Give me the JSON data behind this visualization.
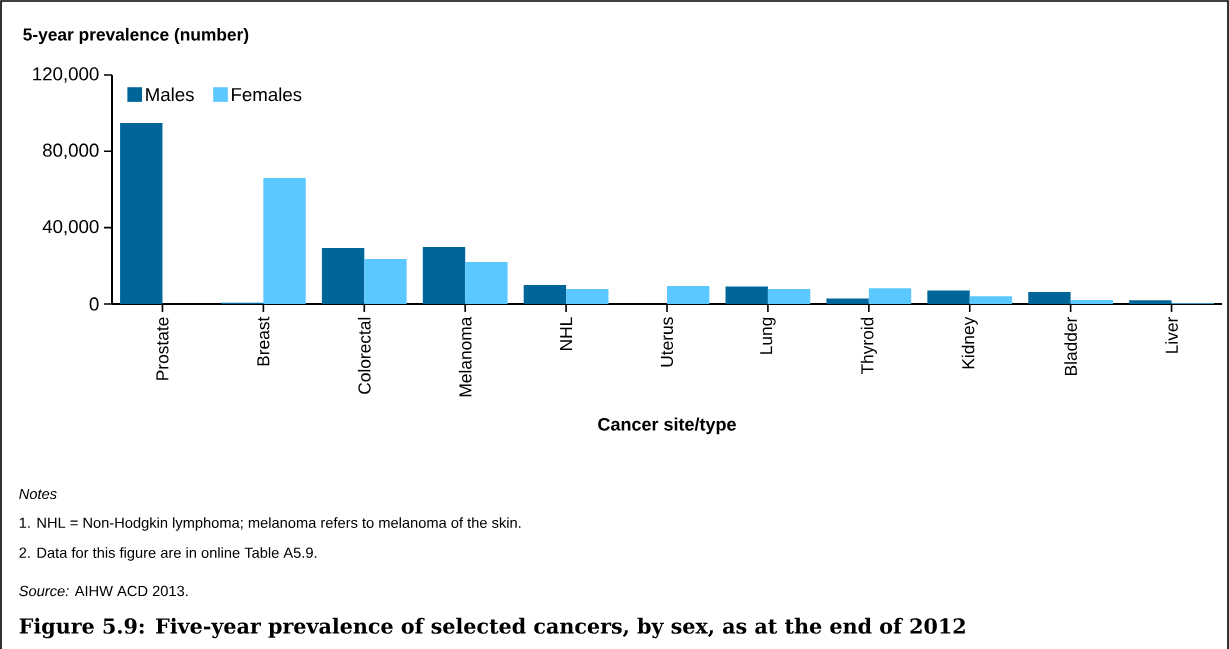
{
  "chart_data": {
    "type": "bar",
    "title": "Figure 5.9: Five-year prevalence of selected cancers, by sex, as at the end of 2012",
    "ylabel": "5-year prevalence (number)",
    "xlabel": "Cancer site/type",
    "categories": [
      "Prostate",
      "Breast",
      "Colorectal",
      "Melanoma",
      "NHL",
      "Uterus",
      "Lung",
      "Thyroid",
      "Kidney",
      "Bladder",
      "Liver"
    ],
    "series": [
      {
        "name": "Males",
        "color": "#006699",
        "values": [
          94900,
          600,
          29300,
          29900,
          10000,
          0,
          9200,
          2900,
          7100,
          6300,
          1900
        ]
      },
      {
        "name": "Females",
        "color": "#5bc8ff",
        "values": [
          0,
          66000,
          23600,
          22000,
          7900,
          9400,
          7800,
          8200,
          4000,
          2100,
          400
        ]
      }
    ],
    "ylim": [
      0,
      120000
    ],
    "yticks": [
      {
        "value": 0,
        "label": "0"
      },
      {
        "value": 40000,
        "label": "40,000"
      },
      {
        "value": 80000,
        "label": "80,000"
      },
      {
        "value": 120000,
        "label": "120,000"
      }
    ],
    "legend": "top left",
    "grid": false,
    "annotations": [
      "*Notes*",
      "1. NHL = Non-Hodgkin lymphoma; melanoma refers to melanoma of the skin.",
      "2. Data for this figure are in online Table A5.9.",
      "*Source:* AIHW ACD 2013."
    ]
  }
}
